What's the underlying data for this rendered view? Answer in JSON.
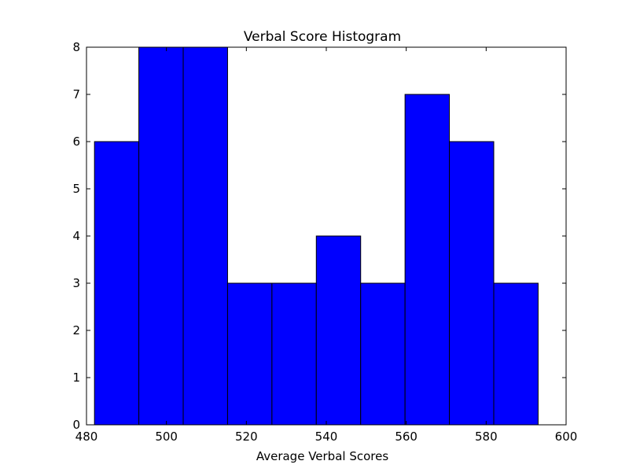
{
  "chart_data": {
    "type": "bar",
    "title": "Verbal Score Histogram",
    "xlabel": "Average Verbal Scores",
    "ylabel": "",
    "xlim": [
      480,
      600
    ],
    "ylim": [
      0,
      8
    ],
    "xticks": [
      480,
      500,
      520,
      540,
      560,
      580,
      600
    ],
    "yticks": [
      0,
      1,
      2,
      3,
      4,
      5,
      6,
      7,
      8
    ],
    "bins": [
      {
        "start": 482.0,
        "end": 493.1,
        "count": 6
      },
      {
        "start": 493.1,
        "end": 504.2,
        "count": 8
      },
      {
        "start": 504.2,
        "end": 515.3,
        "count": 8
      },
      {
        "start": 515.3,
        "end": 526.4,
        "count": 3
      },
      {
        "start": 526.4,
        "end": 537.5,
        "count": 3
      },
      {
        "start": 537.5,
        "end": 548.6,
        "count": 4
      },
      {
        "start": 548.6,
        "end": 559.7,
        "count": 3
      },
      {
        "start": 559.7,
        "end": 570.8,
        "count": 7
      },
      {
        "start": 570.8,
        "end": 581.9,
        "count": 6
      },
      {
        "start": 581.9,
        "end": 593.0,
        "count": 3
      }
    ],
    "bar_color": "#0000ff",
    "edge_color": "#000000",
    "grid": false,
    "legend": "none"
  }
}
